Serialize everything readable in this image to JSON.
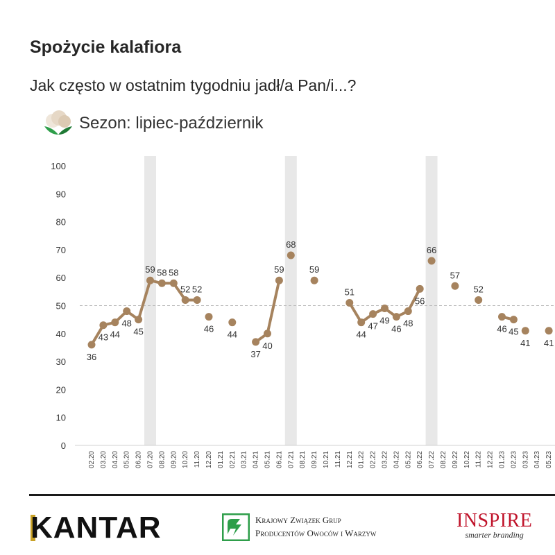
{
  "header": {
    "title": "Spożycie kalafiora",
    "subtitle": "Jak często w ostatnim tygodniu jadł/a Pan/i...?",
    "season": "Sezon: lipiec-październik"
  },
  "footer": {
    "kantar": "KANTAR",
    "kzgp_line1": "Krajowy Związek Grup",
    "kzgp_line2": "Producentów Owoców i Warzyw",
    "inspire_name": "INSPIRE",
    "inspire_tagline": "smarter branding"
  },
  "colors": {
    "line": "#a6835e",
    "band": "#e8e8e8",
    "refline": "#bbbbbb"
  },
  "chart_data": {
    "type": "line",
    "categories": [
      "02.20",
      "03.20",
      "04.20",
      "05.20",
      "06.20",
      "07.20",
      "08.20",
      "09.20",
      "10.20",
      "11.20",
      "12.20",
      "01.21",
      "02.21",
      "03.21",
      "04.21",
      "05.21",
      "06.21",
      "07.21",
      "08.21",
      "09.21",
      "10.21",
      "11.21",
      "12.21",
      "01.22",
      "02.22",
      "03.22",
      "04.22",
      "05.22",
      "06.22",
      "07.22",
      "08.22",
      "09.22",
      "10.22",
      "11.22",
      "12.22",
      "01.23",
      "02.23",
      "03.23",
      "04.23",
      "05.23"
    ],
    "values": [
      36,
      43,
      44,
      48,
      45,
      59,
      58,
      58,
      52,
      52,
      46,
      null,
      44,
      null,
      37,
      40,
      59,
      68,
      null,
      59,
      null,
      null,
      51,
      44,
      47,
      49,
      46,
      48,
      56,
      66,
      null,
      57,
      null,
      52,
      null,
      46,
      45,
      41,
      null,
      41
    ],
    "segments": [
      [
        0,
        10
      ],
      [
        14,
        17
      ],
      [
        22,
        29
      ],
      [
        35,
        37
      ],
      [
        39,
        40
      ]
    ],
    "ylim": [
      0,
      100
    ],
    "yticks": [
      0,
      10,
      20,
      30,
      40,
      50,
      60,
      70,
      80,
      90,
      100
    ],
    "reference_line": 50,
    "season_bands": [
      "07.20",
      "07.21",
      "07.22"
    ],
    "label_positions": [
      "below",
      "below",
      "below",
      "below",
      "below",
      "above",
      "above",
      "above",
      "above",
      "above",
      "below",
      "none",
      "below",
      "none",
      "below",
      "below",
      "above",
      "above",
      "none",
      "above",
      "none",
      "none",
      "above",
      "below",
      "below",
      "below",
      "below",
      "below",
      "below",
      "above",
      "none",
      "above",
      "none",
      "above",
      "none",
      "below",
      "below",
      "below",
      "none",
      "below"
    ],
    "title": "Spożycie kalafiora",
    "xlabel": "",
    "ylabel": "",
    "grid": false
  }
}
